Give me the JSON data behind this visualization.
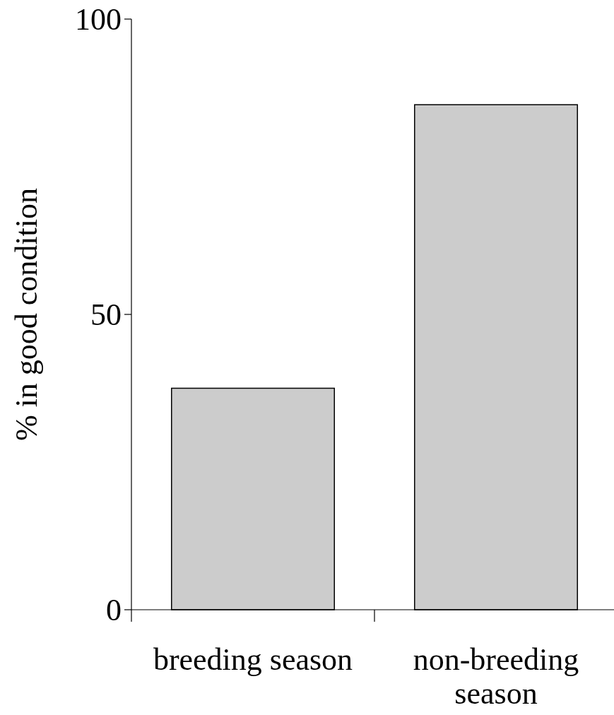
{
  "chart_data": {
    "type": "bar",
    "categories": [
      "breeding season",
      "non-breeding season"
    ],
    "values": [
      37.5,
      85.5
    ],
    "color": "#cccccc",
    "ylabel": "% in good condition",
    "ylim": [
      0,
      100
    ],
    "yticks": [
      0,
      50,
      100
    ],
    "grid": false
  }
}
